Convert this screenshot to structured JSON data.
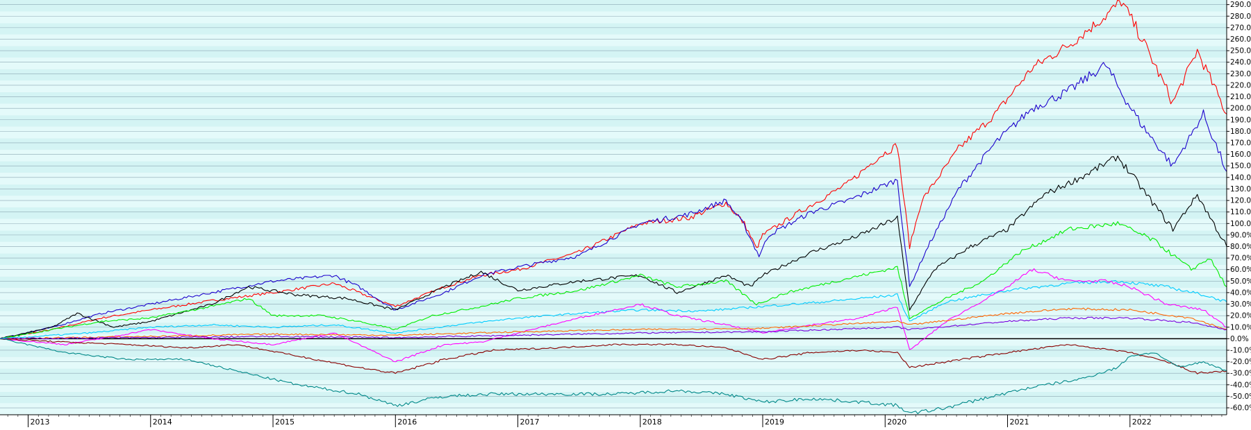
{
  "chart_data": {
    "type": "line",
    "title": "",
    "xlabel": "",
    "ylabel": "",
    "x_ticks": [
      "2013",
      "2014",
      "2015",
      "2016",
      "2017",
      "2018",
      "2019",
      "2020",
      "2021",
      "2022"
    ],
    "x_tick_years": [
      2013,
      2014,
      2015,
      2016,
      2017,
      2018,
      2019,
      2020,
      2021,
      2022
    ],
    "xlim": [
      2012.77,
      2022.79
    ],
    "y_ticks": [
      "290.0%",
      "280.0%",
      "270.0%",
      "260.0%",
      "250.0%",
      "240.0%",
      "230.0%",
      "220.0%",
      "210.0%",
      "200.0%",
      "190.0%",
      "180.0%",
      "170.0%",
      "160.0%",
      "150.0%",
      "140.0%",
      "130.0%",
      "120.0%",
      "110.0%",
      "100.0%",
      "90.0%",
      "80.0%",
      "70.0%",
      "60.0%",
      "50.0%",
      "40.0%",
      "30.0%",
      "20.0%",
      "10.0%",
      "0.0%",
      "-10.0%",
      "-20.0%",
      "-30.0%",
      "-40.0%",
      "-50.0%",
      "-60.0%"
    ],
    "ylim": [
      -66,
      294
    ],
    "grid": true,
    "legend": "none",
    "series": [
      {
        "color": "#ff0000",
        "points": [
          [
            2012.77,
            0
          ],
          [
            2013.2,
            8
          ],
          [
            2013.6,
            18
          ],
          [
            2014.0,
            25
          ],
          [
            2014.5,
            33
          ],
          [
            2015.0,
            40
          ],
          [
            2015.5,
            48
          ],
          [
            2015.7,
            40
          ],
          [
            2016.0,
            28
          ],
          [
            2016.4,
            45
          ],
          [
            2016.7,
            55
          ],
          [
            2017.0,
            60
          ],
          [
            2017.5,
            75
          ],
          [
            2018.0,
            100
          ],
          [
            2018.4,
            105
          ],
          [
            2018.7,
            118
          ],
          [
            2018.85,
            100
          ],
          [
            2018.95,
            78
          ],
          [
            2019.0,
            90
          ],
          [
            2019.3,
            110
          ],
          [
            2019.7,
            135
          ],
          [
            2019.95,
            158
          ],
          [
            2020.1,
            168
          ],
          [
            2020.2,
            80
          ],
          [
            2020.3,
            120
          ],
          [
            2020.6,
            165
          ],
          [
            2020.9,
            195
          ],
          [
            2021.2,
            235
          ],
          [
            2021.5,
            255
          ],
          [
            2021.8,
            280
          ],
          [
            2021.93,
            293
          ],
          [
            2022.1,
            260
          ],
          [
            2022.35,
            205
          ],
          [
            2022.55,
            250
          ],
          [
            2022.79,
            195
          ]
        ]
      },
      {
        "color": "#1c00cc",
        "points": [
          [
            2012.77,
            0
          ],
          [
            2013.2,
            10
          ],
          [
            2013.6,
            22
          ],
          [
            2014.0,
            30
          ],
          [
            2014.5,
            40
          ],
          [
            2015.0,
            50
          ],
          [
            2015.5,
            55
          ],
          [
            2015.7,
            45
          ],
          [
            2016.0,
            25
          ],
          [
            2016.4,
            40
          ],
          [
            2016.7,
            55
          ],
          [
            2017.0,
            62
          ],
          [
            2017.5,
            72
          ],
          [
            2018.0,
            100
          ],
          [
            2018.4,
            108
          ],
          [
            2018.7,
            120
          ],
          [
            2018.85,
            98
          ],
          [
            2018.97,
            72
          ],
          [
            2019.05,
            90
          ],
          [
            2019.4,
            110
          ],
          [
            2019.7,
            120
          ],
          [
            2020.1,
            138
          ],
          [
            2020.2,
            45
          ],
          [
            2020.35,
            80
          ],
          [
            2020.6,
            130
          ],
          [
            2020.9,
            170
          ],
          [
            2021.2,
            200
          ],
          [
            2021.5,
            215
          ],
          [
            2021.8,
            238
          ],
          [
            2021.95,
            210
          ],
          [
            2022.1,
            185
          ],
          [
            2022.35,
            150
          ],
          [
            2022.6,
            195
          ],
          [
            2022.79,
            145
          ]
        ]
      },
      {
        "color": "#000000",
        "points": [
          [
            2012.77,
            0
          ],
          [
            2013.2,
            10
          ],
          [
            2013.4,
            22
          ],
          [
            2013.7,
            10
          ],
          [
            2014.0,
            15
          ],
          [
            2014.5,
            30
          ],
          [
            2014.8,
            45
          ],
          [
            2015.2,
            38
          ],
          [
            2015.6,
            35
          ],
          [
            2016.0,
            25
          ],
          [
            2016.4,
            45
          ],
          [
            2016.7,
            58
          ],
          [
            2017.0,
            42
          ],
          [
            2017.5,
            50
          ],
          [
            2018.0,
            55
          ],
          [
            2018.3,
            40
          ],
          [
            2018.7,
            55
          ],
          [
            2018.9,
            45
          ],
          [
            2019.0,
            55
          ],
          [
            2019.4,
            75
          ],
          [
            2019.8,
            90
          ],
          [
            2020.1,
            105
          ],
          [
            2020.2,
            25
          ],
          [
            2020.4,
            60
          ],
          [
            2020.7,
            80
          ],
          [
            2021.0,
            95
          ],
          [
            2021.3,
            125
          ],
          [
            2021.6,
            140
          ],
          [
            2021.9,
            158
          ],
          [
            2022.1,
            130
          ],
          [
            2022.35,
            95
          ],
          [
            2022.55,
            125
          ],
          [
            2022.79,
            80
          ]
        ]
      },
      {
        "color": "#00ee00",
        "points": [
          [
            2012.77,
            0
          ],
          [
            2013.2,
            8
          ],
          [
            2013.6,
            15
          ],
          [
            2014.0,
            18
          ],
          [
            2014.5,
            28
          ],
          [
            2014.8,
            35
          ],
          [
            2015.0,
            20
          ],
          [
            2015.4,
            20
          ],
          [
            2015.7,
            15
          ],
          [
            2016.0,
            8
          ],
          [
            2016.3,
            20
          ],
          [
            2016.7,
            28
          ],
          [
            2017.0,
            35
          ],
          [
            2017.5,
            42
          ],
          [
            2018.0,
            55
          ],
          [
            2018.3,
            45
          ],
          [
            2018.7,
            50
          ],
          [
            2018.95,
            30
          ],
          [
            2019.2,
            40
          ],
          [
            2019.6,
            50
          ],
          [
            2020.1,
            62
          ],
          [
            2020.2,
            18
          ],
          [
            2020.5,
            35
          ],
          [
            2020.8,
            50
          ],
          [
            2021.1,
            75
          ],
          [
            2021.5,
            95
          ],
          [
            2021.9,
            100
          ],
          [
            2022.2,
            85
          ],
          [
            2022.5,
            60
          ],
          [
            2022.65,
            70
          ],
          [
            2022.79,
            45
          ]
        ]
      },
      {
        "color": "#00ccff",
        "points": [
          [
            2012.77,
            0
          ],
          [
            2013.5,
            5
          ],
          [
            2014.0,
            10
          ],
          [
            2014.5,
            12
          ],
          [
            2015.0,
            10
          ],
          [
            2015.5,
            12
          ],
          [
            2016.0,
            5
          ],
          [
            2016.5,
            12
          ],
          [
            2017.0,
            18
          ],
          [
            2017.5,
            22
          ],
          [
            2018.0,
            25
          ],
          [
            2018.5,
            24
          ],
          [
            2019.0,
            28
          ],
          [
            2019.5,
            32
          ],
          [
            2020.1,
            38
          ],
          [
            2020.2,
            15
          ],
          [
            2020.5,
            32
          ],
          [
            2021.0,
            42
          ],
          [
            2021.5,
            48
          ],
          [
            2021.9,
            50
          ],
          [
            2022.3,
            45
          ],
          [
            2022.6,
            38
          ],
          [
            2022.79,
            32
          ]
        ]
      },
      {
        "color": "#ff00ff",
        "points": [
          [
            2012.77,
            0
          ],
          [
            2013.3,
            -5
          ],
          [
            2013.7,
            2
          ],
          [
            2014.0,
            8
          ],
          [
            2014.5,
            0
          ],
          [
            2015.0,
            -5
          ],
          [
            2015.5,
            5
          ],
          [
            2016.0,
            -20
          ],
          [
            2016.4,
            -5
          ],
          [
            2016.7,
            -3
          ],
          [
            2017.0,
            5
          ],
          [
            2017.5,
            18
          ],
          [
            2018.0,
            30
          ],
          [
            2018.3,
            20
          ],
          [
            2018.7,
            12
          ],
          [
            2019.0,
            5
          ],
          [
            2019.4,
            12
          ],
          [
            2019.8,
            18
          ],
          [
            2020.1,
            28
          ],
          [
            2020.2,
            -10
          ],
          [
            2020.5,
            15
          ],
          [
            2021.0,
            45
          ],
          [
            2021.2,
            60
          ],
          [
            2021.5,
            50
          ],
          [
            2021.8,
            50
          ],
          [
            2022.0,
            45
          ],
          [
            2022.3,
            30
          ],
          [
            2022.6,
            25
          ],
          [
            2022.79,
            10
          ]
        ]
      },
      {
        "color": "#ff6600",
        "points": [
          [
            2012.77,
            0
          ],
          [
            2014.0,
            2
          ],
          [
            2015.0,
            4
          ],
          [
            2016.0,
            3
          ],
          [
            2017.0,
            6
          ],
          [
            2018.0,
            8
          ],
          [
            2019.0,
            9
          ],
          [
            2020.1,
            15
          ],
          [
            2020.2,
            12
          ],
          [
            2021.0,
            22
          ],
          [
            2021.5,
            26
          ],
          [
            2022.0,
            25
          ],
          [
            2022.5,
            18
          ],
          [
            2022.79,
            8
          ]
        ]
      },
      {
        "color": "#7700dd",
        "points": [
          [
            2012.77,
            0
          ],
          [
            2014.0,
            1
          ],
          [
            2015.0,
            2
          ],
          [
            2016.0,
            1
          ],
          [
            2017.0,
            3
          ],
          [
            2018.0,
            5
          ],
          [
            2019.0,
            6
          ],
          [
            2020.1,
            10
          ],
          [
            2020.2,
            8
          ],
          [
            2021.0,
            15
          ],
          [
            2021.5,
            18
          ],
          [
            2022.0,
            18
          ],
          [
            2022.5,
            14
          ],
          [
            2022.79,
            8
          ]
        ]
      },
      {
        "color": "#880000",
        "points": [
          [
            2012.77,
            0
          ],
          [
            2013.3,
            -3
          ],
          [
            2013.8,
            -5
          ],
          [
            2014.3,
            -8
          ],
          [
            2014.7,
            -5
          ],
          [
            2015.2,
            -15
          ],
          [
            2015.7,
            -25
          ],
          [
            2016.0,
            -30
          ],
          [
            2016.4,
            -18
          ],
          [
            2016.8,
            -10
          ],
          [
            2017.3,
            -8
          ],
          [
            2017.8,
            -5
          ],
          [
            2018.3,
            -5
          ],
          [
            2018.7,
            -8
          ],
          [
            2019.0,
            -18
          ],
          [
            2019.4,
            -12
          ],
          [
            2019.8,
            -10
          ],
          [
            2020.1,
            -12
          ],
          [
            2020.2,
            -25
          ],
          [
            2020.5,
            -20
          ],
          [
            2021.0,
            -12
          ],
          [
            2021.5,
            -5
          ],
          [
            2022.0,
            -12
          ],
          [
            2022.3,
            -20
          ],
          [
            2022.55,
            -30
          ],
          [
            2022.79,
            -28
          ]
        ]
      },
      {
        "color": "#008888",
        "points": [
          [
            2012.77,
            0
          ],
          [
            2013.3,
            -12
          ],
          [
            2013.8,
            -18
          ],
          [
            2014.3,
            -18
          ],
          [
            2014.7,
            -28
          ],
          [
            2015.2,
            -40
          ],
          [
            2015.7,
            -48
          ],
          [
            2016.0,
            -58
          ],
          [
            2016.4,
            -50
          ],
          [
            2016.8,
            -48
          ],
          [
            2017.3,
            -48
          ],
          [
            2017.8,
            -48
          ],
          [
            2018.3,
            -45
          ],
          [
            2018.7,
            -48
          ],
          [
            2019.0,
            -55
          ],
          [
            2019.4,
            -52
          ],
          [
            2019.8,
            -55
          ],
          [
            2020.1,
            -58
          ],
          [
            2020.2,
            -65
          ],
          [
            2020.5,
            -60
          ],
          [
            2020.8,
            -52
          ],
          [
            2021.2,
            -42
          ],
          [
            2021.6,
            -35
          ],
          [
            2021.9,
            -25
          ],
          [
            2022.0,
            -15
          ],
          [
            2022.2,
            -12
          ],
          [
            2022.4,
            -25
          ],
          [
            2022.6,
            -20
          ],
          [
            2022.79,
            -28
          ]
        ]
      }
    ]
  }
}
